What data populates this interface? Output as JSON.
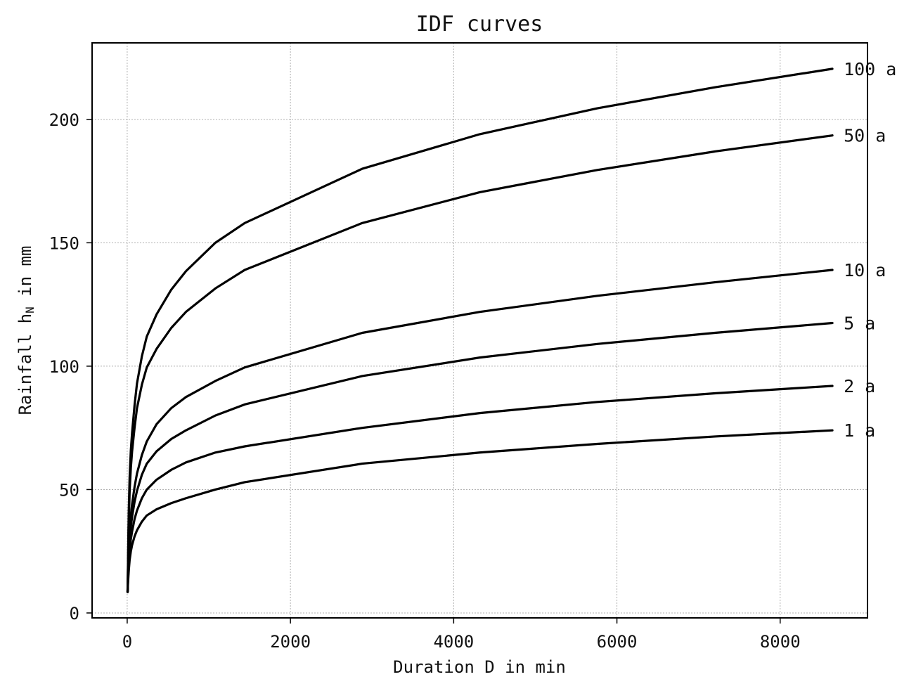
{
  "chart_data": {
    "type": "line",
    "title": "IDF curves",
    "xlabel": "Duration D in min",
    "ylabel_main": "Rainfall h",
    "ylabel_sub": "N",
    "ylabel_tail": " in mm",
    "xlim": [
      -430,
      9070
    ],
    "ylim": [
      -2,
      231
    ],
    "xticks": [
      0,
      2000,
      4000,
      6000,
      8000
    ],
    "yticks": [
      0,
      50,
      100,
      150,
      200
    ],
    "grid": true,
    "x": [
      5,
      10,
      15,
      20,
      30,
      45,
      60,
      90,
      120,
      180,
      240,
      360,
      540,
      720,
      1080,
      1440,
      2880,
      4320,
      5760,
      7200,
      8640
    ],
    "series": [
      {
        "name": "100 a",
        "values": [
          9,
          20,
          32,
          42,
          55,
          66,
          73,
          84,
          93,
          104,
          112,
          121,
          131,
          138.5,
          150,
          158,
          180,
          194,
          204.5,
          213,
          220.5
        ]
      },
      {
        "name": "50 a",
        "values": [
          8.5,
          18.5,
          29,
          38,
          49.5,
          59,
          65.5,
          75,
          83,
          92.5,
          99.5,
          107,
          115.5,
          122,
          131.5,
          139,
          158,
          170.5,
          179.5,
          187,
          193.5
        ]
      },
      {
        "name": "10 a",
        "values": [
          8.5,
          15.5,
          21.5,
          26,
          33,
          39.5,
          44,
          51,
          56.5,
          64,
          69.5,
          76.5,
          83,
          87.5,
          94,
          99.5,
          113.5,
          122,
          128.5,
          134,
          139
        ]
      },
      {
        "name": "5 a",
        "values": [
          8.5,
          14.5,
          19.5,
          23.5,
          29.5,
          35,
          39,
          45,
          49.5,
          56,
          60.5,
          65.5,
          70.5,
          74,
          80,
          84.5,
          96,
          103.5,
          109,
          113.5,
          117.5
        ]
      },
      {
        "name": "2 a",
        "values": [
          8.5,
          13,
          17,
          20.5,
          25.5,
          30,
          33,
          38,
          41.5,
          46.5,
          50,
          54,
          58,
          61,
          65,
          67.5,
          75,
          81,
          85.5,
          89,
          92
        ]
      },
      {
        "name": "1 a",
        "values": [
          8.5,
          12,
          15,
          17.5,
          21.5,
          25,
          27.5,
          31,
          33.5,
          37,
          39.5,
          42,
          44.5,
          46.5,
          50,
          53,
          60.5,
          65,
          68.5,
          71.5,
          74
        ]
      }
    ]
  }
}
